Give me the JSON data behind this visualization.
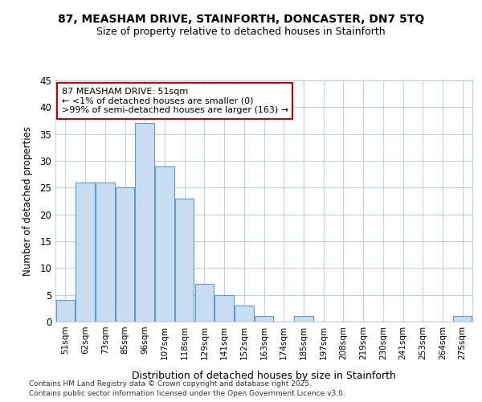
{
  "title1": "87, MEASHAM DRIVE, STAINFORTH, DONCASTER, DN7 5TQ",
  "title2": "Size of property relative to detached houses in Stainforth",
  "xlabel": "Distribution of detached houses by size in Stainforth",
  "ylabel": "Number of detached properties",
  "categories": [
    "51sqm",
    "62sqm",
    "73sqm",
    "85sqm",
    "96sqm",
    "107sqm",
    "118sqm",
    "129sqm",
    "141sqm",
    "152sqm",
    "163sqm",
    "174sqm",
    "185sqm",
    "197sqm",
    "208sqm",
    "219sqm",
    "230sqm",
    "241sqm",
    "253sqm",
    "264sqm",
    "275sqm"
  ],
  "values": [
    4,
    26,
    26,
    25,
    37,
    29,
    23,
    7,
    5,
    3,
    1,
    0,
    1,
    0,
    0,
    0,
    0,
    0,
    0,
    0,
    1
  ],
  "bar_color": "#c9ddf2",
  "bar_edge_color": "#5b9bd5",
  "annotation_text": "87 MEASHAM DRIVE: 51sqm\n← <1% of detached houses are smaller (0)\n>99% of semi-detached houses are larger (163) →",
  "annotation_box_color": "#ffffff",
  "annotation_box_edge_color": "#cc0000",
  "ylim": [
    0,
    45
  ],
  "yticks": [
    0,
    5,
    10,
    15,
    20,
    25,
    30,
    35,
    40,
    45
  ],
  "background_color": "#ffffff",
  "plot_background_color": "#ffffff",
  "grid_color": "#c0cfe0",
  "footer1": "Contains HM Land Registry data © Crown copyright and database right 2025.",
  "footer2": "Contains public sector information licensed under the Open Government Licence v3.0."
}
